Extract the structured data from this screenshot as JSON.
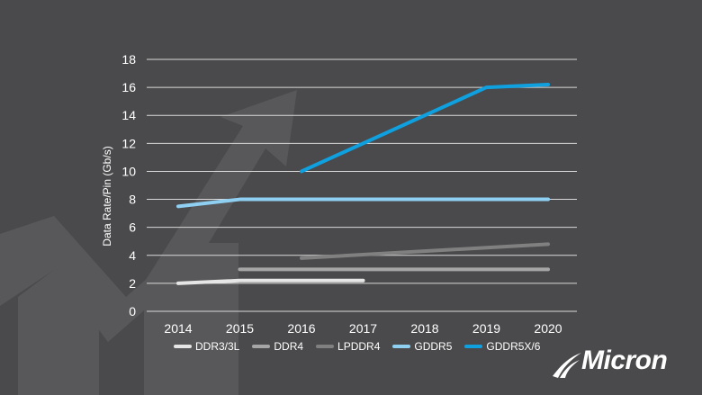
{
  "chart_data": {
    "type": "line",
    "x": [
      2014,
      2015,
      2016,
      2017,
      2018,
      2019,
      2020
    ],
    "xticks": [
      "2014",
      "2015",
      "2016",
      "2017",
      "2018",
      "2019",
      "2020"
    ],
    "yticks": [
      "0",
      "2",
      "4",
      "6",
      "8",
      "10",
      "12",
      "14",
      "16",
      "18"
    ],
    "ylim": [
      0,
      18
    ],
    "ylabel": "Data Rate/Pin (Gb/s)",
    "grid": true,
    "legend_position": "bottom",
    "series": [
      {
        "name": "DDR3/3L",
        "color": "#e6e6e6",
        "points": [
          [
            2014,
            2.0
          ],
          [
            2015,
            2.2
          ],
          [
            2016,
            2.2
          ],
          [
            2017,
            2.2
          ]
        ]
      },
      {
        "name": "DDR4",
        "color": "#a6a6a6",
        "points": [
          [
            2015,
            3.0
          ],
          [
            2020,
            3.0
          ]
        ]
      },
      {
        "name": "LPDDR4",
        "color": "#808080",
        "points": [
          [
            2016,
            3.8
          ],
          [
            2020,
            4.8
          ]
        ]
      },
      {
        "name": "GDDR5",
        "color": "#8ecff2",
        "points": [
          [
            2014,
            7.5
          ],
          [
            2015,
            8.0
          ],
          [
            2020,
            8.0
          ]
        ]
      },
      {
        "name": "GDDR5X/6",
        "color": "#0fa0e0",
        "points": [
          [
            2016,
            10.0
          ],
          [
            2019,
            16.0
          ],
          [
            2020,
            16.2
          ]
        ]
      }
    ]
  },
  "logo": {
    "text": "Micron"
  }
}
